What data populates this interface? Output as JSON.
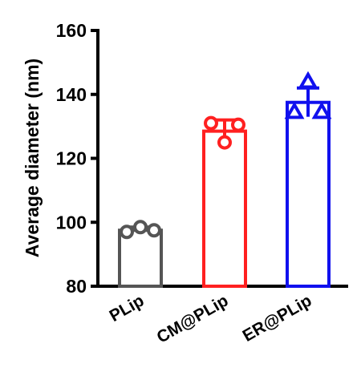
{
  "chart_data": {
    "type": "bar",
    "ylabel": "Average diameter (nm)",
    "xlabel": "",
    "ylim": [
      80,
      160
    ],
    "yticks": [
      80,
      100,
      120,
      140,
      160
    ],
    "categories": [
      "PLip",
      "CM@PLip",
      "ER@PLip"
    ],
    "values": [
      97.5,
      128.5,
      137.5
    ],
    "errors": [
      1.0,
      3.5,
      4.5
    ],
    "points": [
      [
        97.0,
        98.5,
        97.5
      ],
      [
        131.0,
        125.0,
        130.5
      ],
      [
        134.5,
        144.0,
        134.5
      ]
    ],
    "markers": [
      "circle",
      "circle",
      "triangle"
    ],
    "colors": [
      "#555555",
      "#ff2020",
      "#1010ee"
    ],
    "grid": false
  }
}
